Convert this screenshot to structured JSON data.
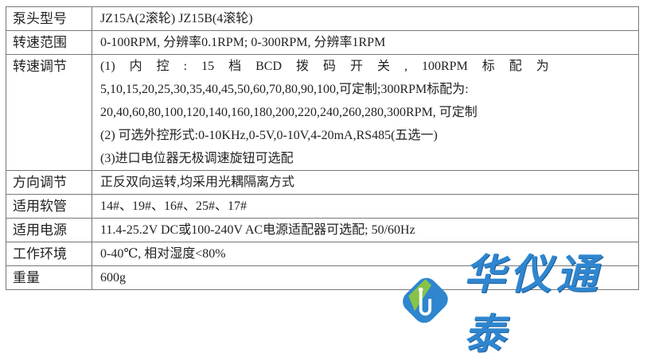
{
  "rows": [
    {
      "label": "泵头型号",
      "lines": [
        "JZ15A(2滚轮) JZ15B(4滚轮)"
      ]
    },
    {
      "label": "转速范围",
      "lines": [
        "0-100RPM, 分辨率0.1RPM; 0-300RPM, 分辨率1RPM"
      ]
    },
    {
      "label": "转速调节",
      "lines": [
        "(1) 内 控 : 15 档 BCD 拨 码 开 关 , 100RPM 标 配 为",
        "5,10,15,20,25,30,35,40,45,50,60,70,80,90,100,可定制;300RPM标配为:",
        "20,40,60,80,100,120,140,160,180,200,220,240,260,280,300RPM, 可定制",
        "(2) 可选外控形式:0-10KHz,0-5V,0-10V,4-20mA,RS485(五选一)",
        "(3)进口电位器无极调速旋钮可选配"
      ]
    },
    {
      "label": "方向调节",
      "lines": [
        "正反双向运转,均采用光耦隔离方式"
      ]
    },
    {
      "label": "适用软管",
      "lines": [
        "14#、19#、16#、25#、17#"
      ]
    },
    {
      "label": "适用电源",
      "lines": [
        "11.4-25.2V DC或100-240V AC电源适配器可选配; 50/60Hz"
      ]
    },
    {
      "label": "工作环境",
      "lines": [
        "0-40℃, 相对湿度<80%"
      ]
    },
    {
      "label": "重量",
      "lines": [
        "600g"
      ]
    }
  ],
  "logo": {
    "text": "华仪通泰",
    "colors": {
      "green": "#8cc63f",
      "blue": "#2f86cf"
    }
  }
}
